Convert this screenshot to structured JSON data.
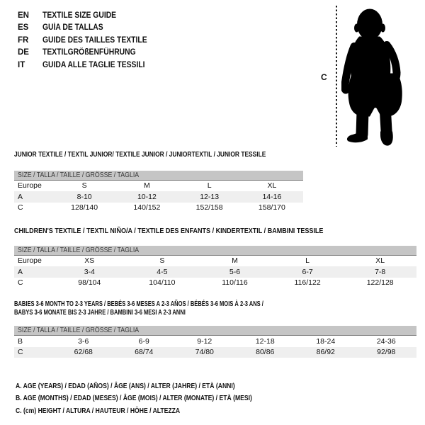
{
  "languages": [
    {
      "code": "EN",
      "title": "TEXTILE SIZE GUIDE"
    },
    {
      "code": "ES",
      "title": "GUÍA DE TALLAS"
    },
    {
      "code": "FR",
      "title": "GUIDE DES TAILLES TEXTILE"
    },
    {
      "code": "DE",
      "title": "TEXTILGRÖßENFÜHRUNG"
    },
    {
      "code": "IT",
      "title": "GUIDA ALLE TAGLIE TESSILI"
    }
  ],
  "figure": {
    "label": "C",
    "icon": "baby-silhouette"
  },
  "tables": [
    {
      "title_lines": [
        "JUNIOR TEXTILE / TEXTIL JUNIOR/ TEXTILE JUNIOR / JUNIORTEXTIL / JUNIOR TESSILE"
      ],
      "header": "SIZE / TALLA / TAILLE / GRÖSSE / TAGLIA",
      "rows": [
        {
          "label": "Europe",
          "cells": [
            "S",
            "M",
            "L",
            "XL"
          ],
          "shaded": false
        },
        {
          "label": "A",
          "cells": [
            "8-10",
            "10-12",
            "12-13",
            "14-16"
          ],
          "shaded": true
        },
        {
          "label": "C",
          "cells": [
            "128/140",
            "140/152",
            "152/158",
            "158/170"
          ],
          "shaded": false
        }
      ]
    },
    {
      "title_lines": [
        "CHILDREN'S TEXTILE / TEXTIL NIÑO/A / TEXTILE DES ENFANTS / KINDERTEXTIL / BAMBINI TESSILE"
      ],
      "header": "SIZE / TALLA / TAILLE / GRÖSSE / TAGLIA",
      "rows": [
        {
          "label": "Europe",
          "cells": [
            "XS",
            "S",
            "M",
            "L",
            "XL"
          ],
          "shaded": false
        },
        {
          "label": "A",
          "cells": [
            "3-4",
            "4-5",
            "5-6",
            "6-7",
            "7-8"
          ],
          "shaded": true
        },
        {
          "label": "C",
          "cells": [
            "98/104",
            "104/110",
            "110/116",
            "116/122",
            "122/128"
          ],
          "shaded": false
        }
      ]
    },
    {
      "title_lines": [
        "BABIES 3-6 MONTH TO 2-3 YEARS / BEBÉS 3-6 MESES A 2-3 AÑOS / BÉBÉS 3-6 MOIS À 2-3 ANS /",
        "BABYS 3-6 MONATE BIS 2-3 JAHRE / BAMBINI 3-6 MESI A 2-3 ANNI"
      ],
      "header": "SIZE / TALLA / TAILLE / GRÖSSE / TAGLIA",
      "rows": [
        {
          "label": "B",
          "cells": [
            "3-6",
            "6-9",
            "9-12",
            "12-18",
            "18-24",
            "24-36"
          ],
          "shaded": false
        },
        {
          "label": "C",
          "cells": [
            "62/68",
            "68/74",
            "74/80",
            "80/86",
            "86/92",
            "92/98"
          ],
          "shaded": true
        }
      ]
    }
  ],
  "footnotes": [
    "A. AGE (YEARS) / EDAD (AÑOS) / ÂGE (ANS) / ALTER (JAHRE) / ETÀ (ANNI)",
    "B. AGE (MONTHS) / EDAD (MESES) / ÂGE (MOIS) / ALTER (MONATE) / ETÀ (MESI)",
    "C. (cm) HEIGHT / ALTURA / HAUTEUR / HÖHE / ALTEZZA"
  ],
  "colors": {
    "text": "#111111",
    "header_bar_bg": "#c5c5c5",
    "header_bar_text": "#3d3d3d",
    "shaded_row_bg": "#efefef",
    "silhouette": "#000000"
  }
}
